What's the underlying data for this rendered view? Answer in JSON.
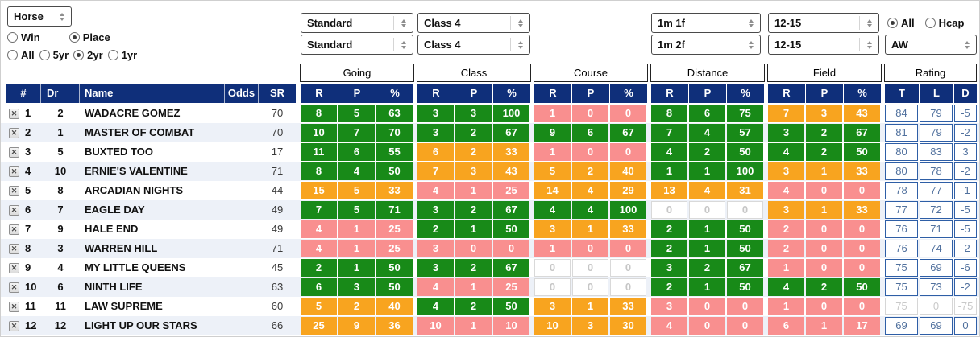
{
  "colors": {
    "header_navy": "#0f2f7a",
    "green": "#188a18",
    "amber": "#f8a41f",
    "red": "#f98f8f",
    "row_stripe": "#edf1f8",
    "rating_text": "#51719e",
    "rating_border": "#2e5ea6",
    "muted": "#c9c9c9"
  },
  "filters": {
    "horse": "Horse",
    "going_top": "Standard",
    "going_bottom": "Standard",
    "class_top": "Class 4",
    "class_bottom": "Class 4",
    "distance_top": "1m 1f",
    "distance_bottom": "1m 2f",
    "field_top": "12-15",
    "field_bottom": "12-15",
    "surface": "AW",
    "radio_groups": {
      "bet_type": {
        "options": [
          "Win",
          "Place"
        ],
        "selected": "Place"
      },
      "age": {
        "options": [
          "All",
          "5yr",
          "2yr",
          "1yr"
        ],
        "selected": "2yr"
      },
      "race_type": {
        "options": [
          "All",
          "Hcap"
        ],
        "selected": "All"
      }
    }
  },
  "table": {
    "group_headers": [
      "Going",
      "Class",
      "Course",
      "Distance",
      "Field",
      "Rating"
    ],
    "columns": [
      "#",
      "Dr",
      "Name",
      "Odds",
      "SR"
    ],
    "rp_headers": [
      "R",
      "P",
      "%"
    ],
    "rating_headers": [
      "T",
      "L",
      "D"
    ],
    "rows": [
      {
        "num": "1",
        "dr": "2",
        "name": "WADACRE GOMEZ",
        "odds": "",
        "sr": "70",
        "going": {
          "r": "8",
          "p": "5",
          "pct": "63",
          "level": "green"
        },
        "class": {
          "r": "3",
          "p": "3",
          "pct": "100",
          "level": "green"
        },
        "course": {
          "r": "1",
          "p": "0",
          "pct": "0",
          "level": "red"
        },
        "distance": {
          "r": "8",
          "p": "6",
          "pct": "75",
          "level": "green"
        },
        "field": {
          "r": "7",
          "p": "3",
          "pct": "43",
          "level": "amber"
        },
        "rating": {
          "t": "84",
          "l": "79",
          "d": "-5",
          "muted": false
        }
      },
      {
        "num": "2",
        "dr": "1",
        "name": "MASTER OF COMBAT",
        "odds": "",
        "sr": "70",
        "going": {
          "r": "10",
          "p": "7",
          "pct": "70",
          "level": "green"
        },
        "class": {
          "r": "3",
          "p": "2",
          "pct": "67",
          "level": "green"
        },
        "course": {
          "r": "9",
          "p": "6",
          "pct": "67",
          "level": "green"
        },
        "distance": {
          "r": "7",
          "p": "4",
          "pct": "57",
          "level": "green"
        },
        "field": {
          "r": "3",
          "p": "2",
          "pct": "67",
          "level": "green"
        },
        "rating": {
          "t": "81",
          "l": "79",
          "d": "-2",
          "muted": false
        }
      },
      {
        "num": "3",
        "dr": "5",
        "name": "BUXTED TOO",
        "odds": "",
        "sr": "17",
        "going": {
          "r": "11",
          "p": "6",
          "pct": "55",
          "level": "green"
        },
        "class": {
          "r": "6",
          "p": "2",
          "pct": "33",
          "level": "amber"
        },
        "course": {
          "r": "1",
          "p": "0",
          "pct": "0",
          "level": "red"
        },
        "distance": {
          "r": "4",
          "p": "2",
          "pct": "50",
          "level": "green"
        },
        "field": {
          "r": "4",
          "p": "2",
          "pct": "50",
          "level": "green"
        },
        "rating": {
          "t": "80",
          "l": "83",
          "d": "3",
          "muted": false
        }
      },
      {
        "num": "4",
        "dr": "10",
        "name": "ERNIE'S VALENTINE",
        "odds": "",
        "sr": "71",
        "going": {
          "r": "8",
          "p": "4",
          "pct": "50",
          "level": "green"
        },
        "class": {
          "r": "7",
          "p": "3",
          "pct": "43",
          "level": "amber"
        },
        "course": {
          "r": "5",
          "p": "2",
          "pct": "40",
          "level": "amber"
        },
        "distance": {
          "r": "1",
          "p": "1",
          "pct": "100",
          "level": "green"
        },
        "field": {
          "r": "3",
          "p": "1",
          "pct": "33",
          "level": "amber"
        },
        "rating": {
          "t": "80",
          "l": "78",
          "d": "-2",
          "muted": false
        }
      },
      {
        "num": "5",
        "dr": "8",
        "name": "ARCADIAN NIGHTS",
        "odds": "",
        "sr": "44",
        "going": {
          "r": "15",
          "p": "5",
          "pct": "33",
          "level": "amber"
        },
        "class": {
          "r": "4",
          "p": "1",
          "pct": "25",
          "level": "red"
        },
        "course": {
          "r": "14",
          "p": "4",
          "pct": "29",
          "level": "amber"
        },
        "distance": {
          "r": "13",
          "p": "4",
          "pct": "31",
          "level": "amber"
        },
        "field": {
          "r": "4",
          "p": "0",
          "pct": "0",
          "level": "red"
        },
        "rating": {
          "t": "78",
          "l": "77",
          "d": "-1",
          "muted": false
        }
      },
      {
        "num": "6",
        "dr": "7",
        "name": "EAGLE DAY",
        "odds": "",
        "sr": "49",
        "going": {
          "r": "7",
          "p": "5",
          "pct": "71",
          "level": "green"
        },
        "class": {
          "r": "3",
          "p": "2",
          "pct": "67",
          "level": "green"
        },
        "course": {
          "r": "4",
          "p": "4",
          "pct": "100",
          "level": "green"
        },
        "distance": {
          "r": "0",
          "p": "0",
          "pct": "0",
          "level": "none"
        },
        "field": {
          "r": "3",
          "p": "1",
          "pct": "33",
          "level": "amber"
        },
        "rating": {
          "t": "77",
          "l": "72",
          "d": "-5",
          "muted": false
        }
      },
      {
        "num": "7",
        "dr": "9",
        "name": "HALE END",
        "odds": "",
        "sr": "49",
        "going": {
          "r": "4",
          "p": "1",
          "pct": "25",
          "level": "red"
        },
        "class": {
          "r": "2",
          "p": "1",
          "pct": "50",
          "level": "green"
        },
        "course": {
          "r": "3",
          "p": "1",
          "pct": "33",
          "level": "amber"
        },
        "distance": {
          "r": "2",
          "p": "1",
          "pct": "50",
          "level": "green"
        },
        "field": {
          "r": "2",
          "p": "0",
          "pct": "0",
          "level": "red"
        },
        "rating": {
          "t": "76",
          "l": "71",
          "d": "-5",
          "muted": false
        }
      },
      {
        "num": "8",
        "dr": "3",
        "name": "WARREN HILL",
        "odds": "",
        "sr": "71",
        "going": {
          "r": "4",
          "p": "1",
          "pct": "25",
          "level": "red"
        },
        "class": {
          "r": "3",
          "p": "0",
          "pct": "0",
          "level": "red"
        },
        "course": {
          "r": "1",
          "p": "0",
          "pct": "0",
          "level": "red"
        },
        "distance": {
          "r": "2",
          "p": "1",
          "pct": "50",
          "level": "green"
        },
        "field": {
          "r": "2",
          "p": "0",
          "pct": "0",
          "level": "red"
        },
        "rating": {
          "t": "76",
          "l": "74",
          "d": "-2",
          "muted": false
        }
      },
      {
        "num": "9",
        "dr": "4",
        "name": "MY LITTLE QUEENS",
        "odds": "",
        "sr": "45",
        "going": {
          "r": "2",
          "p": "1",
          "pct": "50",
          "level": "green"
        },
        "class": {
          "r": "3",
          "p": "2",
          "pct": "67",
          "level": "green"
        },
        "course": {
          "r": "0",
          "p": "0",
          "pct": "0",
          "level": "none"
        },
        "distance": {
          "r": "3",
          "p": "2",
          "pct": "67",
          "level": "green"
        },
        "field": {
          "r": "1",
          "p": "0",
          "pct": "0",
          "level": "red"
        },
        "rating": {
          "t": "75",
          "l": "69",
          "d": "-6",
          "muted": false
        }
      },
      {
        "num": "10",
        "dr": "6",
        "name": "NINTH LIFE",
        "odds": "",
        "sr": "63",
        "going": {
          "r": "6",
          "p": "3",
          "pct": "50",
          "level": "green"
        },
        "class": {
          "r": "4",
          "p": "1",
          "pct": "25",
          "level": "red"
        },
        "course": {
          "r": "0",
          "p": "0",
          "pct": "0",
          "level": "none"
        },
        "distance": {
          "r": "2",
          "p": "1",
          "pct": "50",
          "level": "green"
        },
        "field": {
          "r": "4",
          "p": "2",
          "pct": "50",
          "level": "green"
        },
        "rating": {
          "t": "75",
          "l": "73",
          "d": "-2",
          "muted": false
        }
      },
      {
        "num": "11",
        "dr": "11",
        "name": "LAW SUPREME",
        "odds": "",
        "sr": "60",
        "going": {
          "r": "5",
          "p": "2",
          "pct": "40",
          "level": "amber"
        },
        "class": {
          "r": "4",
          "p": "2",
          "pct": "50",
          "level": "green"
        },
        "course": {
          "r": "3",
          "p": "1",
          "pct": "33",
          "level": "amber"
        },
        "distance": {
          "r": "3",
          "p": "0",
          "pct": "0",
          "level": "red"
        },
        "field": {
          "r": "1",
          "p": "0",
          "pct": "0",
          "level": "red"
        },
        "rating": {
          "t": "75",
          "l": "0",
          "d": "-75",
          "muted": true
        }
      },
      {
        "num": "12",
        "dr": "12",
        "name": "LIGHT UP OUR STARS",
        "odds": "",
        "sr": "66",
        "going": {
          "r": "25",
          "p": "9",
          "pct": "36",
          "level": "amber"
        },
        "class": {
          "r": "10",
          "p": "1",
          "pct": "10",
          "level": "red"
        },
        "course": {
          "r": "10",
          "p": "3",
          "pct": "30",
          "level": "amber"
        },
        "distance": {
          "r": "4",
          "p": "0",
          "pct": "0",
          "level": "red"
        },
        "field": {
          "r": "6",
          "p": "1",
          "pct": "17",
          "level": "red"
        },
        "rating": {
          "t": "69",
          "l": "69",
          "d": "0",
          "muted": false
        }
      }
    ]
  }
}
